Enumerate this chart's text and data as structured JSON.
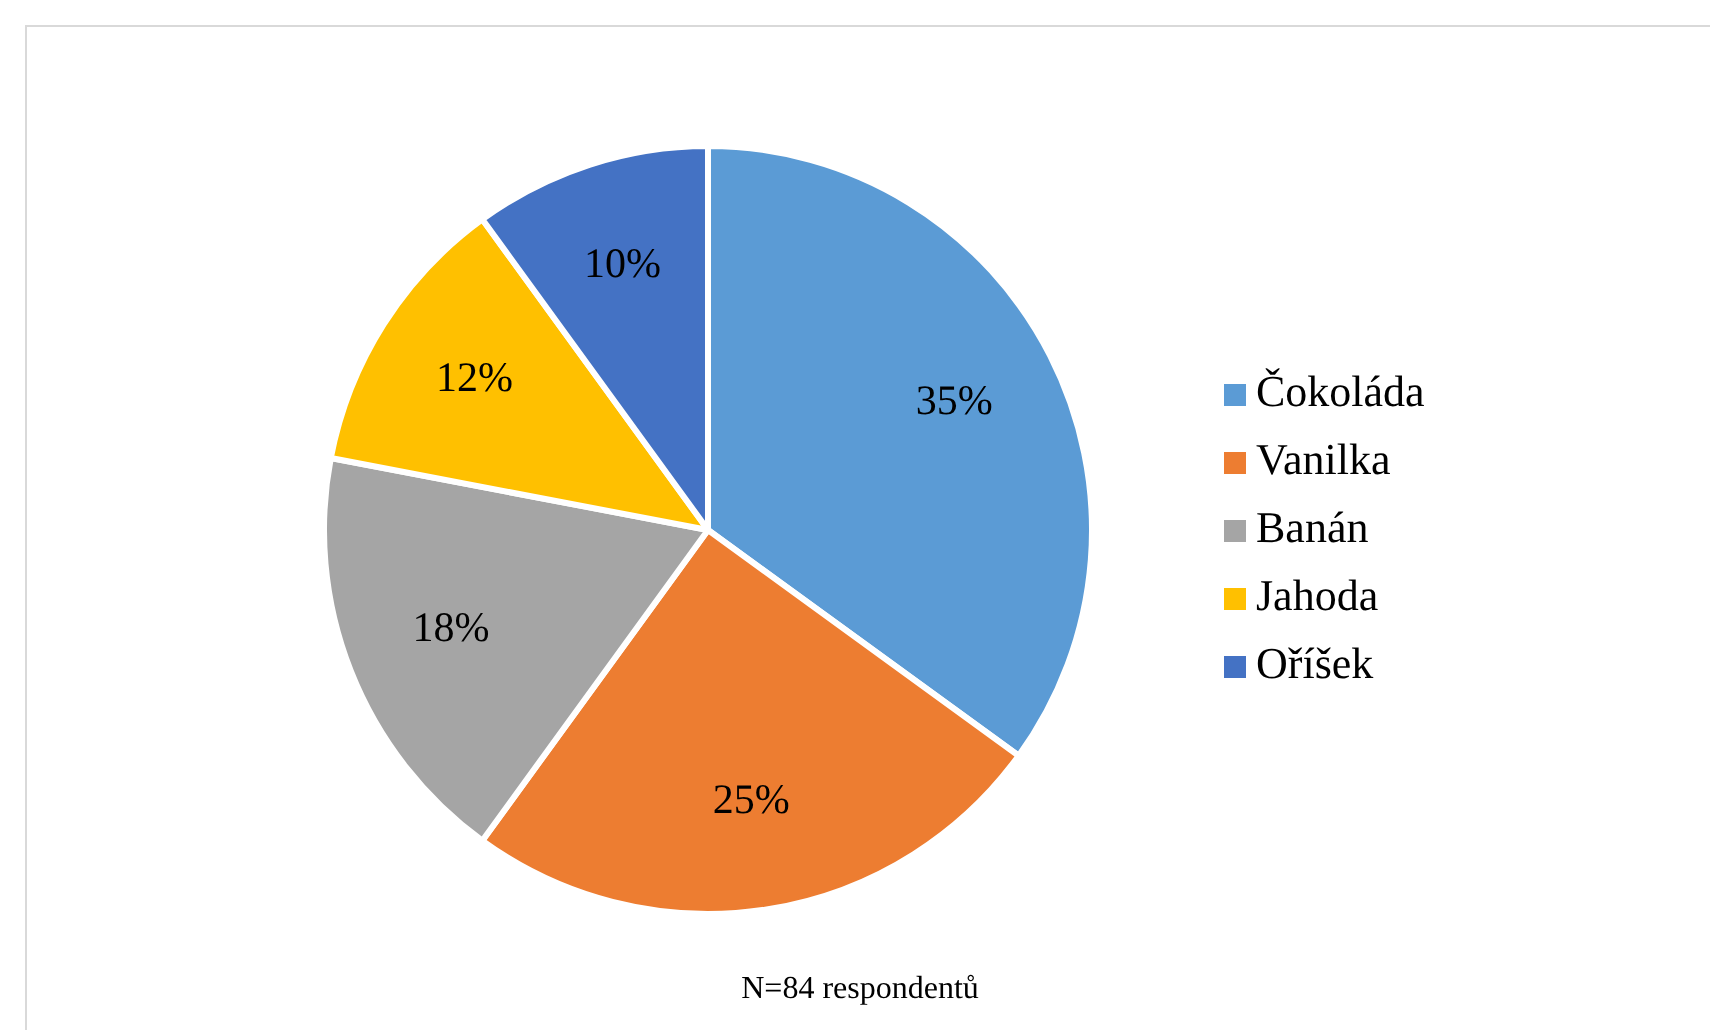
{
  "chart_data": {
    "type": "pie",
    "categories": [
      "Čokoláda",
      "Vanilka",
      "Banán",
      "Jahoda",
      "Oříšek"
    ],
    "values": [
      35,
      25,
      18,
      12,
      10
    ],
    "colors": [
      "#5b9bd5",
      "#ed7d31",
      "#a5a5a5",
      "#ffc000",
      "#4472c4"
    ],
    "value_labels": [
      "35%",
      "25%",
      "18%",
      "12%",
      "10%"
    ],
    "legend": "right",
    "annotations": [
      "N=84 respondentů"
    ]
  }
}
